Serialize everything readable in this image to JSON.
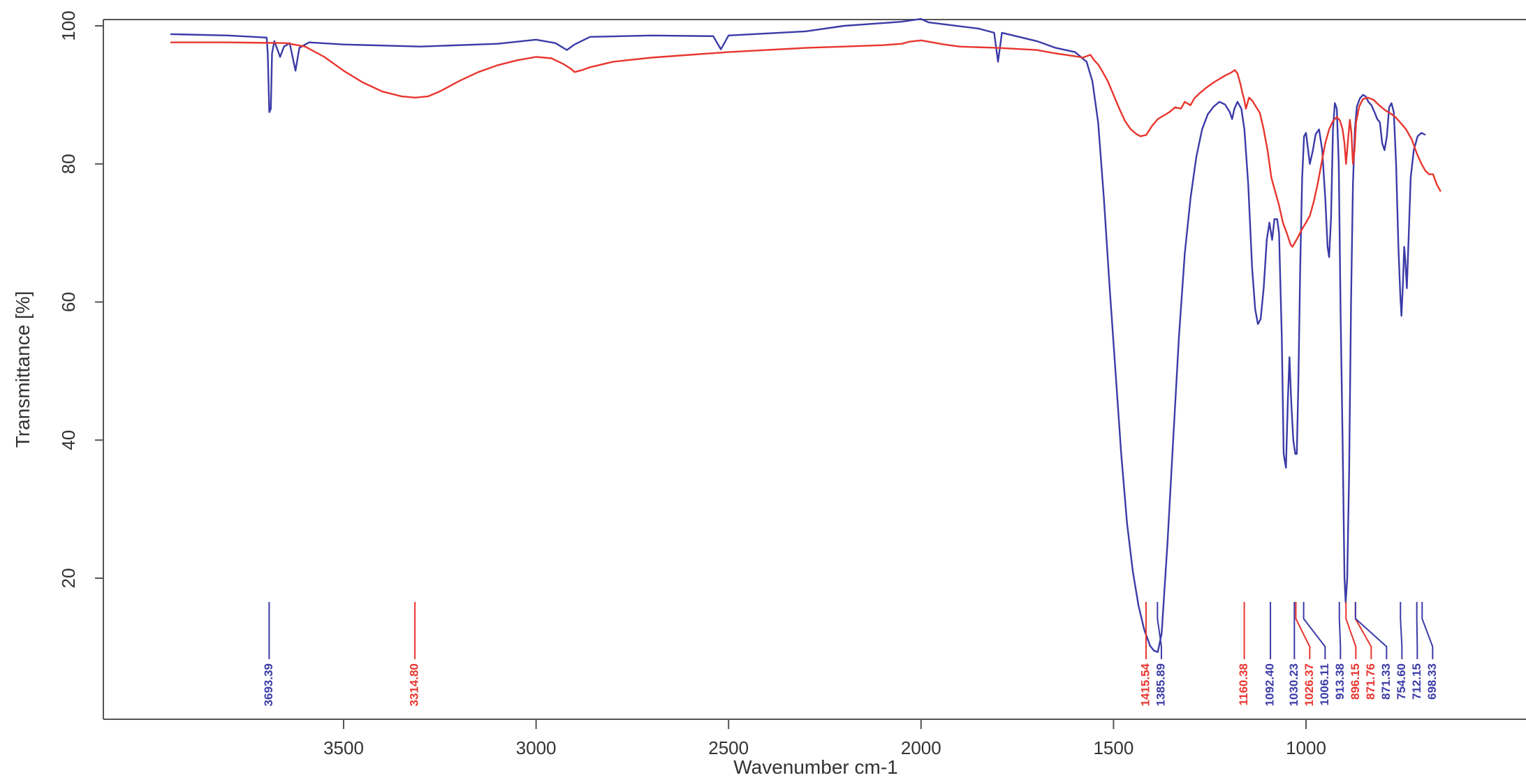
{
  "chart_data": {
    "type": "line",
    "title": "",
    "xlabel": "Wavenumber cm-1",
    "ylabel": "Transmittance [%]",
    "xlim": [
      3950,
      650
    ],
    "ylim": [
      0,
      102
    ],
    "x_reversed": true,
    "x_ticks": [
      3500,
      3000,
      2500,
      2000,
      1500,
      1000
    ],
    "y_ticks": [
      20,
      40,
      60,
      80,
      100
    ],
    "grid": false,
    "legend": "none",
    "colors": {
      "blue": "#3b3ba8",
      "red": "#e8352e"
    },
    "series": [
      {
        "color": "blue",
        "points": [
          [
            3950,
            98.8
          ],
          [
            3800,
            98.6
          ],
          [
            3700,
            98.3
          ],
          [
            3697,
            96
          ],
          [
            3693,
            87.5
          ],
          [
            3689,
            88
          ],
          [
            3686,
            96
          ],
          [
            3680,
            97.8
          ],
          [
            3665,
            95.5
          ],
          [
            3655,
            97
          ],
          [
            3640,
            97.5
          ],
          [
            3625,
            93.5
          ],
          [
            3615,
            96.8
          ],
          [
            3590,
            97.6
          ],
          [
            3500,
            97.3
          ],
          [
            3300,
            97
          ],
          [
            3100,
            97.4
          ],
          [
            3000,
            98
          ],
          [
            2950,
            97.5
          ],
          [
            2920,
            96.5
          ],
          [
            2900,
            97.3
          ],
          [
            2860,
            98.4
          ],
          [
            2700,
            98.6
          ],
          [
            2540,
            98.5
          ],
          [
            2520,
            96.6
          ],
          [
            2500,
            98.6
          ],
          [
            2300,
            99.2
          ],
          [
            2200,
            100
          ],
          [
            2050,
            100.6
          ],
          [
            2000,
            101
          ],
          [
            1980,
            100.5
          ],
          [
            1850,
            99.6
          ],
          [
            1810,
            99
          ],
          [
            1800,
            94.8
          ],
          [
            1790,
            99
          ],
          [
            1700,
            97.8
          ],
          [
            1650,
            96.8
          ],
          [
            1600,
            96.2
          ],
          [
            1570,
            94.8
          ],
          [
            1555,
            92
          ],
          [
            1540,
            86
          ],
          [
            1525,
            75
          ],
          [
            1510,
            62
          ],
          [
            1495,
            50
          ],
          [
            1480,
            38
          ],
          [
            1465,
            28
          ],
          [
            1450,
            21
          ],
          [
            1435,
            16
          ],
          [
            1420,
            12.5
          ],
          [
            1405,
            10.2
          ],
          [
            1395,
            9.5
          ],
          [
            1385,
            9.3
          ],
          [
            1375,
            12
          ],
          [
            1360,
            25
          ],
          [
            1345,
            40
          ],
          [
            1330,
            55
          ],
          [
            1315,
            67
          ],
          [
            1300,
            75
          ],
          [
            1285,
            81
          ],
          [
            1270,
            85
          ],
          [
            1255,
            87.2
          ],
          [
            1240,
            88.3
          ],
          [
            1225,
            89
          ],
          [
            1210,
            88.6
          ],
          [
            1198,
            87.5
          ],
          [
            1192,
            86.5
          ],
          [
            1186,
            88
          ],
          [
            1178,
            89
          ],
          [
            1168,
            88
          ],
          [
            1160,
            85
          ],
          [
            1150,
            77
          ],
          [
            1140,
            65
          ],
          [
            1132,
            59
          ],
          [
            1125,
            56.8
          ],
          [
            1118,
            57.5
          ],
          [
            1110,
            62
          ],
          [
            1102,
            69
          ],
          [
            1095,
            71.5
          ],
          [
            1088,
            69
          ],
          [
            1082,
            72
          ],
          [
            1075,
            72
          ],
          [
            1070,
            70
          ],
          [
            1063,
            55
          ],
          [
            1058,
            38
          ],
          [
            1052,
            36
          ],
          [
            1047,
            46
          ],
          [
            1043,
            52
          ],
          [
            1038,
            45
          ],
          [
            1033,
            40
          ],
          [
            1028,
            38
          ],
          [
            1024,
            38
          ],
          [
            1020,
            48
          ],
          [
            1015,
            65
          ],
          [
            1010,
            78
          ],
          [
            1005,
            84
          ],
          [
            1000,
            84.5
          ],
          [
            990,
            80
          ],
          [
            982,
            82
          ],
          [
            975,
            84.3
          ],
          [
            966,
            85
          ],
          [
            958,
            82
          ],
          [
            950,
            75
          ],
          [
            944,
            68
          ],
          [
            940,
            66.5
          ],
          [
            935,
            72
          ],
          [
            930,
            85
          ],
          [
            925,
            88.8
          ],
          [
            920,
            88
          ],
          [
            915,
            80
          ],
          [
            910,
            58
          ],
          [
            905,
            40
          ],
          [
            900,
            20
          ],
          [
            897,
            16.5
          ],
          [
            893,
            20
          ],
          [
            888,
            35
          ],
          [
            883,
            60
          ],
          [
            878,
            77
          ],
          [
            873,
            85
          ],
          [
            868,
            88.3
          ],
          [
            860,
            89.5
          ],
          [
            852,
            90
          ],
          [
            845,
            89.8
          ],
          [
            838,
            89
          ],
          [
            830,
            88.5
          ],
          [
            822,
            87.5
          ],
          [
            815,
            86.5
          ],
          [
            808,
            86
          ],
          [
            802,
            83
          ],
          [
            796,
            82
          ],
          [
            790,
            84
          ],
          [
            784,
            88.2
          ],
          [
            778,
            88.8
          ],
          [
            772,
            87.5
          ],
          [
            766,
            80
          ],
          [
            760,
            68
          ],
          [
            755,
            61
          ],
          [
            752,
            58
          ],
          [
            748,
            63
          ],
          [
            745,
            68
          ],
          [
            742,
            66
          ],
          [
            738,
            62
          ],
          [
            733,
            70
          ],
          [
            728,
            78
          ],
          [
            720,
            82
          ],
          [
            710,
            84
          ],
          [
            700,
            84.5
          ],
          [
            690,
            84.2
          ]
        ]
      },
      {
        "color": "red",
        "points": [
          [
            3950,
            97.6
          ],
          [
            3800,
            97.6
          ],
          [
            3650,
            97.5
          ],
          [
            3600,
            97
          ],
          [
            3550,
            95.5
          ],
          [
            3500,
            93.5
          ],
          [
            3450,
            91.8
          ],
          [
            3400,
            90.5
          ],
          [
            3350,
            89.8
          ],
          [
            3314,
            89.6
          ],
          [
            3280,
            89.8
          ],
          [
            3250,
            90.5
          ],
          [
            3200,
            92
          ],
          [
            3150,
            93.3
          ],
          [
            3100,
            94.3
          ],
          [
            3050,
            95
          ],
          [
            3000,
            95.5
          ],
          [
            2960,
            95.3
          ],
          [
            2930,
            94.5
          ],
          [
            2910,
            93.8
          ],
          [
            2900,
            93.3
          ],
          [
            2880,
            93.6
          ],
          [
            2860,
            94
          ],
          [
            2800,
            94.8
          ],
          [
            2700,
            95.4
          ],
          [
            2600,
            95.8
          ],
          [
            2500,
            96.2
          ],
          [
            2400,
            96.5
          ],
          [
            2300,
            96.8
          ],
          [
            2200,
            97
          ],
          [
            2100,
            97.2
          ],
          [
            2050,
            97.4
          ],
          [
            2030,
            97.7
          ],
          [
            2000,
            97.9
          ],
          [
            1970,
            97.6
          ],
          [
            1940,
            97.3
          ],
          [
            1900,
            97
          ],
          [
            1800,
            96.8
          ],
          [
            1700,
            96.5
          ],
          [
            1650,
            96
          ],
          [
            1600,
            95.6
          ],
          [
            1580,
            95.4
          ],
          [
            1560,
            95.8
          ],
          [
            1550,
            95
          ],
          [
            1540,
            94.4
          ],
          [
            1530,
            93.5
          ],
          [
            1515,
            92
          ],
          [
            1500,
            90
          ],
          [
            1485,
            88
          ],
          [
            1470,
            86.2
          ],
          [
            1455,
            85
          ],
          [
            1440,
            84.3
          ],
          [
            1430,
            84
          ],
          [
            1415,
            84.2
          ],
          [
            1400,
            85.5
          ],
          [
            1385,
            86.5
          ],
          [
            1370,
            87
          ],
          [
            1355,
            87.5
          ],
          [
            1340,
            88.2
          ],
          [
            1325,
            88
          ],
          [
            1315,
            89
          ],
          [
            1300,
            88.5
          ],
          [
            1290,
            89.5
          ],
          [
            1275,
            90.3
          ],
          [
            1260,
            91
          ],
          [
            1240,
            91.8
          ],
          [
            1225,
            92.3
          ],
          [
            1210,
            92.8
          ],
          [
            1195,
            93.2
          ],
          [
            1185,
            93.6
          ],
          [
            1178,
            93.1
          ],
          [
            1170,
            91.5
          ],
          [
            1165,
            90.2
          ],
          [
            1160,
            89.2
          ],
          [
            1156,
            88
          ],
          [
            1152,
            88.8
          ],
          [
            1148,
            89.6
          ],
          [
            1140,
            89.2
          ],
          [
            1130,
            88.3
          ],
          [
            1120,
            87.4
          ],
          [
            1110,
            85
          ],
          [
            1100,
            82
          ],
          [
            1090,
            78
          ],
          [
            1080,
            76
          ],
          [
            1070,
            74
          ],
          [
            1060,
            71.5
          ],
          [
            1050,
            70
          ],
          [
            1040,
            68.3
          ],
          [
            1035,
            68
          ],
          [
            1030,
            68.5
          ],
          [
            1020,
            69.5
          ],
          [
            1010,
            70.6
          ],
          [
            1000,
            71.5
          ],
          [
            990,
            72.5
          ],
          [
            980,
            74.5
          ],
          [
            970,
            77
          ],
          [
            960,
            80
          ],
          [
            950,
            83
          ],
          [
            940,
            85
          ],
          [
            930,
            86.2
          ],
          [
            920,
            86.8
          ],
          [
            912,
            86.3
          ],
          [
            905,
            85
          ],
          [
            900,
            83
          ],
          [
            896,
            80
          ],
          [
            890,
            84
          ],
          [
            886,
            86.4
          ],
          [
            882,
            84.5
          ],
          [
            878,
            80
          ],
          [
            874,
            82
          ],
          [
            870,
            86
          ],
          [
            862,
            88.3
          ],
          [
            852,
            89.4
          ],
          [
            840,
            89.6
          ],
          [
            825,
            89.3
          ],
          [
            810,
            88.5
          ],
          [
            795,
            87.8
          ],
          [
            780,
            87.3
          ],
          [
            768,
            86.8
          ],
          [
            755,
            86
          ],
          [
            740,
            85
          ],
          [
            725,
            83.5
          ],
          [
            712,
            81.5
          ],
          [
            700,
            80
          ],
          [
            690,
            79
          ],
          [
            680,
            78.5
          ],
          [
            670,
            78.5
          ],
          [
            660,
            77
          ],
          [
            650,
            76
          ]
        ]
      }
    ],
    "annotations": [
      {
        "x": 3693.39,
        "label": "3693.39",
        "color": "blue"
      },
      {
        "x": 3314.8,
        "label": "3314.80",
        "color": "red"
      },
      {
        "x": 1415.54,
        "label": "1415.54",
        "color": "red"
      },
      {
        "x": 1385.89,
        "label": "1385.89",
        "color": "blue"
      },
      {
        "x": 1160.38,
        "label": "1160.38",
        "color": "red"
      },
      {
        "x": 1092.4,
        "label": "1092.40",
        "color": "blue"
      },
      {
        "x": 1030.23,
        "label": "1030.23",
        "color": "blue"
      },
      {
        "x": 1026.37,
        "label": "1026.37",
        "color": "red"
      },
      {
        "x": 1006.11,
        "label": "1006.11",
        "color": "blue"
      },
      {
        "x": 913.38,
        "label": "913.38",
        "color": "blue"
      },
      {
        "x": 896.15,
        "label": "896.15",
        "color": "red"
      },
      {
        "x": 871.76,
        "label": "871.76",
        "color": "red"
      },
      {
        "x": 871.33,
        "label": "871.33",
        "color": "blue"
      },
      {
        "x": 754.6,
        "label": "754.60",
        "color": "blue"
      },
      {
        "x": 712.15,
        "label": "712.15",
        "color": "blue"
      },
      {
        "x": 698.33,
        "label": "698.33",
        "color": "blue"
      }
    ]
  }
}
